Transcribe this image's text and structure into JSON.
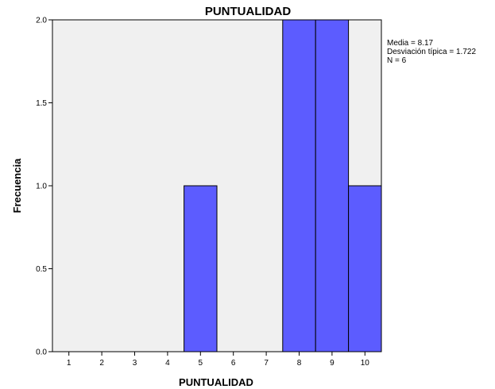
{
  "chart_data": {
    "type": "bar",
    "title": "PUNTUALIDAD",
    "xlabel": "PUNTUALIDAD",
    "ylabel": "Frecuencia",
    "categories": [
      "1",
      "2",
      "3",
      "4",
      "5",
      "6",
      "7",
      "8",
      "9",
      "10"
    ],
    "values": [
      0,
      0,
      0,
      0,
      1,
      0,
      0,
      2,
      2,
      1
    ],
    "ylim": [
      0,
      2.0
    ],
    "yticks": [
      "0.0",
      "0.5",
      "1.0",
      "1.5",
      "2.0"
    ],
    "grid": false,
    "legend": "none",
    "stats": {
      "mean": "Media = 8.17",
      "std": "Desviación típica = 1.722",
      "n": "N = 6"
    },
    "colors": {
      "bar": "#5c5cff",
      "bar_edge": "#000000",
      "plot_bg": "#f0f0f0"
    }
  }
}
